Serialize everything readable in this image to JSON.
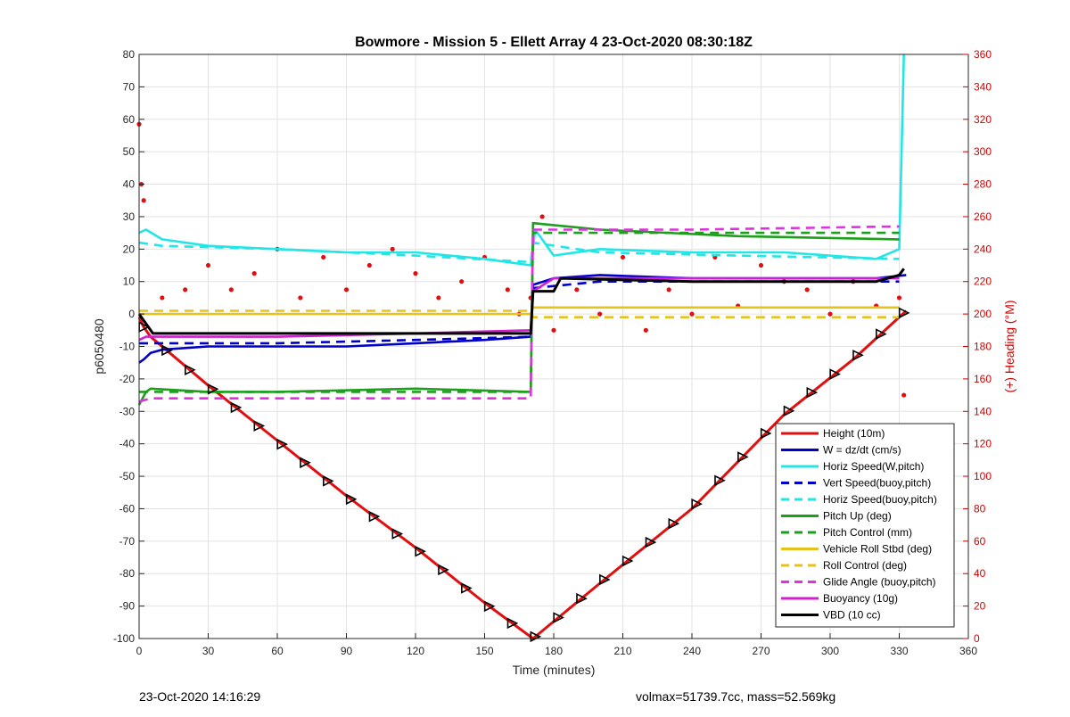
{
  "footer": {
    "left": "23-Oct-2020 14:16:29",
    "right": "volmax=51739.7cc, mass=52.569kg"
  },
  "chart_data": {
    "type": "line",
    "title": "Bowmore - Mission 5 - Ellett Array 4 23-Oct-2020 08:30:18Z",
    "xlabel": "Time (minutes)",
    "ylabel": "p6050480",
    "ylabel_right": "(+) Heading (°M)",
    "xlim": [
      0,
      360
    ],
    "ylim": [
      -100,
      80
    ],
    "ylim_right": [
      0,
      360
    ],
    "xticks": [
      "0",
      "30",
      "60",
      "90",
      "120",
      "150",
      "180",
      "210",
      "240",
      "270",
      "300",
      "330",
      "360"
    ],
    "yticks": [
      "80",
      "70",
      "60",
      "50",
      "40",
      "30",
      "20",
      "10",
      "0",
      "-10",
      "-20",
      "-30",
      "-40",
      "-50",
      "-60",
      "-70",
      "-80",
      "-90",
      "-100"
    ],
    "yticks_right": [
      "360",
      "340",
      "320",
      "300",
      "280",
      "260",
      "240",
      "220",
      "200",
      "180",
      "160",
      "140",
      "120",
      "100",
      "80",
      "60",
      "40",
      "20",
      "0"
    ],
    "grid": true,
    "legend_position": "bottom-right",
    "series": [
      {
        "name": "Height (10m)",
        "color": "#e01010",
        "style": "solid",
        "x": [
          0,
          2,
          5,
          30,
          60,
          90,
          120,
          150,
          171,
          200,
          240,
          280,
          310,
          333
        ],
        "y": [
          -1,
          -4,
          -7,
          -22,
          -39,
          -56,
          -72,
          -89,
          -100,
          -83,
          -60,
          -31,
          -14,
          1
        ]
      },
      {
        "name": "W = dz/dt (cm/s)",
        "color": "#0000c8",
        "style": "solid",
        "x": [
          0,
          2,
          5,
          10,
          30,
          60,
          90,
          120,
          150,
          170,
          171,
          180,
          200,
          240,
          280,
          320,
          333
        ],
        "y": [
          -15,
          -14,
          -12,
          -11,
          -10,
          -10,
          -10,
          -9,
          -8,
          -7,
          9,
          11,
          12,
          11,
          11,
          11,
          12
        ]
      },
      {
        "name": "Horiz Speed(W,pitch)",
        "color": "#22e6e6",
        "style": "solid",
        "x": [
          0,
          3,
          10,
          30,
          60,
          90,
          120,
          150,
          170,
          172,
          180,
          200,
          240,
          280,
          320,
          330,
          332
        ],
        "y": [
          25,
          26,
          23,
          21,
          20,
          19,
          19,
          17,
          15,
          26,
          18,
          20,
          19,
          19,
          17,
          20,
          80
        ]
      },
      {
        "name": "Vert Speed(buoy,pitch)",
        "color": "#0000c8",
        "style": "dashed",
        "x": [
          0,
          10,
          60,
          120,
          170,
          171,
          200,
          260,
          330
        ],
        "y": [
          -9,
          -9,
          -9,
          -8,
          -7,
          8,
          10,
          10,
          10
        ]
      },
      {
        "name": "Horiz Speed(buoy,pitch)",
        "color": "#22e6e6",
        "style": "dashed",
        "x": [
          0,
          10,
          60,
          120,
          170,
          171,
          200,
          260,
          330
        ],
        "y": [
          22,
          21,
          20,
          18,
          16,
          22,
          19,
          18,
          17
        ]
      },
      {
        "name": "Pitch Up (deg)",
        "color": "#1ca01c",
        "style": "solid",
        "x": [
          0,
          3,
          5,
          30,
          60,
          120,
          170,
          171,
          200,
          260,
          330
        ],
        "y": [
          -28,
          -24,
          -23,
          -24,
          -24,
          -23,
          -24,
          28,
          26,
          24,
          23
        ]
      },
      {
        "name": "Pitch Control (mm)",
        "color": "#1ca01c",
        "style": "dashed",
        "x": [
          0,
          170,
          171,
          330
        ],
        "y": [
          -24,
          -24,
          25,
          25
        ]
      },
      {
        "name": "Vehicle Roll Stbd (deg)",
        "color": "#e6c21c",
        "style": "solid",
        "x": [
          0,
          10,
          60,
          120,
          170,
          171,
          240,
          330
        ],
        "y": [
          0,
          0,
          0,
          0,
          0,
          2,
          2,
          2
        ]
      },
      {
        "name": "Roll Control (deg)",
        "color": "#e6c21c",
        "style": "dashed",
        "x": [
          0,
          10,
          60,
          120,
          170,
          171,
          240,
          330
        ],
        "y": [
          1,
          1,
          1,
          1,
          1,
          -1,
          -1,
          -1
        ]
      },
      {
        "name": "Glide Angle (buoy,pitch)",
        "color": "#e030e0",
        "style": "dashed",
        "x": [
          0,
          5,
          60,
          120,
          170,
          171,
          240,
          330
        ],
        "y": [
          -27,
          -26,
          -26,
          -26,
          -26,
          26,
          26,
          27
        ]
      },
      {
        "name": "Buoyancy (10g)",
        "color": "#d020d0",
        "style": "solid",
        "x": [
          0,
          3,
          60,
          120,
          170,
          171,
          180,
          240,
          330
        ],
        "y": [
          -8,
          -7,
          -7,
          -6,
          -5,
          7,
          11,
          11,
          11
        ]
      },
      {
        "name": "VBD (10 cc)",
        "color": "#000000",
        "style": "solid",
        "x": [
          0,
          3,
          6,
          170,
          171,
          180,
          183,
          240,
          320,
          330,
          332
        ],
        "y": [
          0,
          -3,
          -6,
          -6,
          7,
          7,
          11,
          10,
          10,
          12,
          14
        ]
      }
    ],
    "heading_points_right_axis": {
      "name": "(+) Heading (°M)",
      "color": "#e01010",
      "x": [
        0,
        1,
        2,
        10,
        20,
        30,
        40,
        50,
        60,
        70,
        80,
        90,
        100,
        110,
        120,
        130,
        140,
        150,
        160,
        165,
        170,
        175,
        180,
        190,
        200,
        210,
        220,
        230,
        240,
        250,
        260,
        270,
        280,
        290,
        300,
        310,
        320,
        330,
        332
      ],
      "y": [
        317,
        280,
        270,
        210,
        215,
        230,
        215,
        225,
        240,
        210,
        235,
        215,
        230,
        240,
        225,
        210,
        220,
        235,
        215,
        200,
        210,
        260,
        190,
        215,
        200,
        235,
        190,
        215,
        200,
        235,
        205,
        230,
        220,
        215,
        200,
        220,
        205,
        210,
        150
      ]
    }
  }
}
